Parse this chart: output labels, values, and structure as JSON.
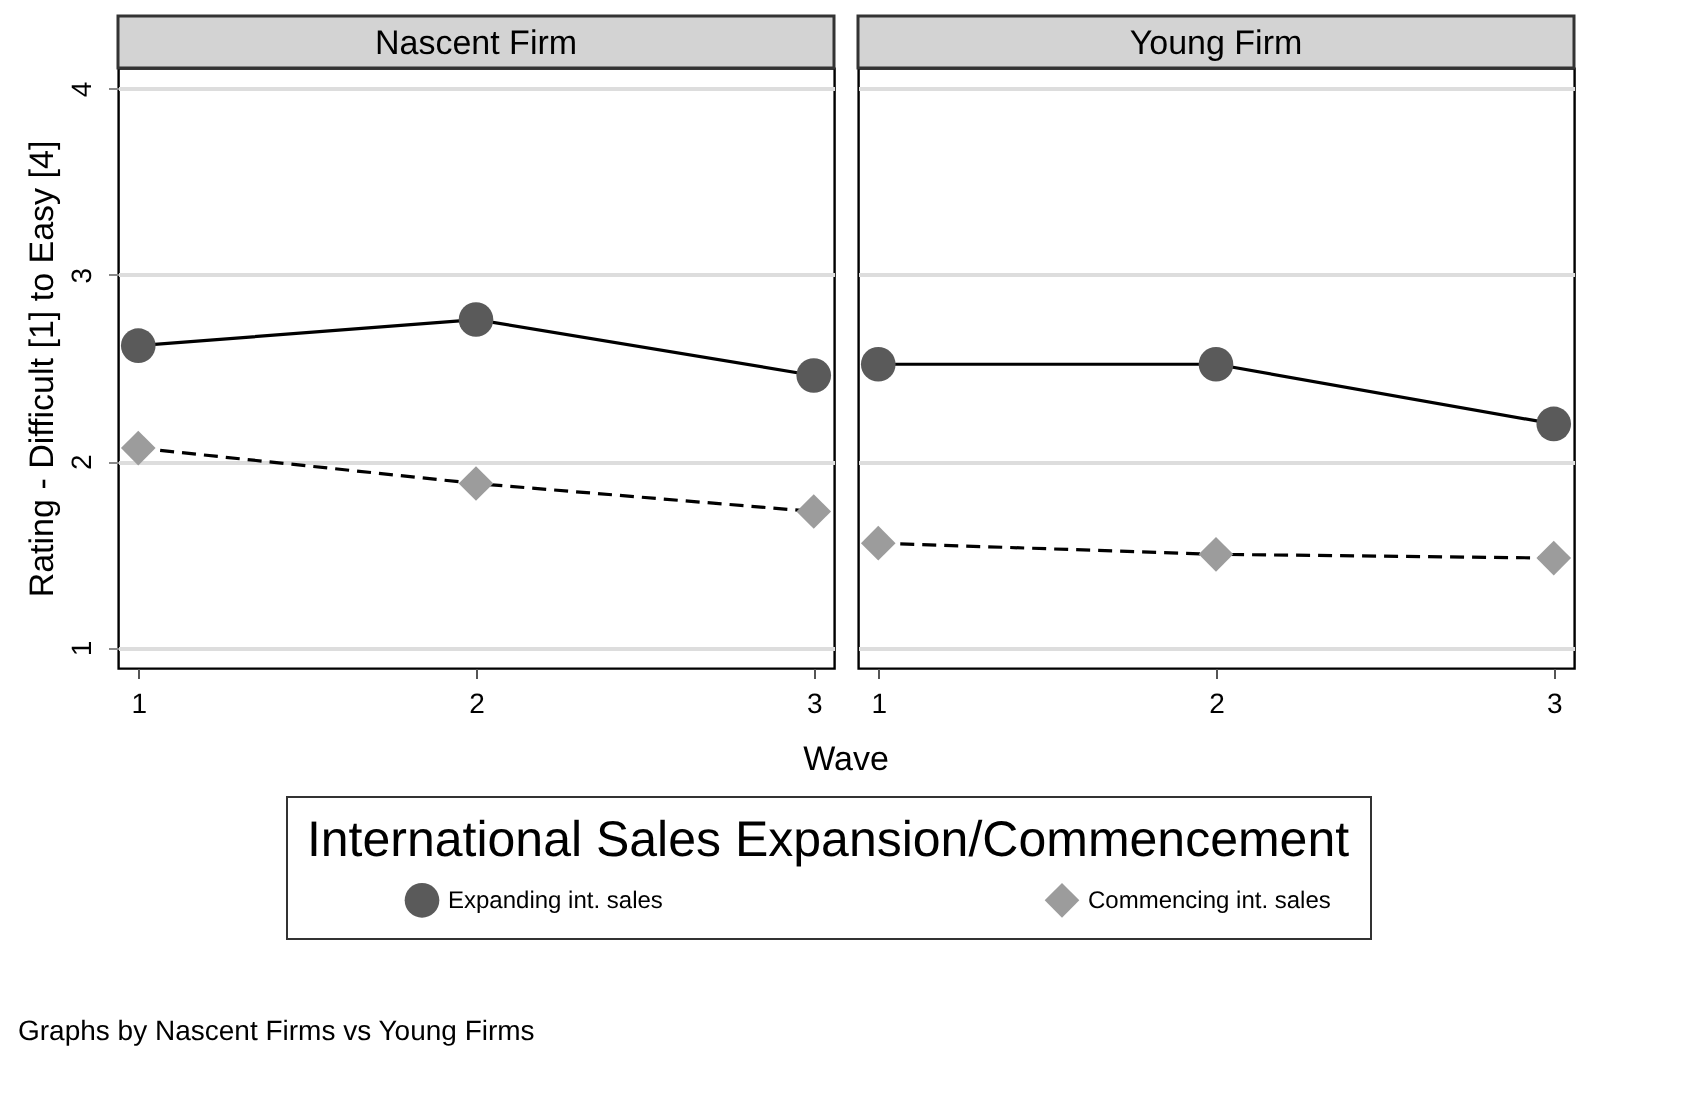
{
  "chart_data": [
    {
      "type": "line",
      "title": "Nascent Firm",
      "xlabel": "Wave",
      "ylabel": "Rating - Difficult [1] to Easy [4]",
      "legend_title": "International Sales Expansion/Commencement",
      "legend": "bottom",
      "annotations": [
        "Graphs by Nascent Firms vs Young Firms"
      ],
      "x": [
        1,
        2,
        3
      ],
      "xlim": [
        0.94,
        3.06
      ],
      "xticks": [
        1,
        2,
        3
      ],
      "ylim": [
        0.89,
        4.11
      ],
      "yticks": [
        1,
        2,
        3,
        4
      ],
      "grid": "y",
      "series": [
        {
          "name": "Expanding int. sales",
          "color": "#5a5a5a",
          "marker": "circle",
          "line_style": "solid",
          "values": [
            2.62,
            2.76,
            2.46
          ]
        },
        {
          "name": "Commencing int. sales",
          "color": "#9c9c9c",
          "marker": "diamond",
          "line_style": "dashed",
          "values": [
            2.07,
            1.88,
            1.73
          ]
        }
      ]
    },
    {
      "type": "line",
      "title": "Young Firm",
      "x": [
        1,
        2,
        3
      ],
      "xlim": [
        0.94,
        3.06
      ],
      "xticks": [
        1,
        2,
        3
      ],
      "ylim": [
        0.89,
        4.11
      ],
      "yticks": [
        1,
        2,
        3,
        4
      ],
      "grid": "y",
      "tick_labels": "x",
      "series": [
        {
          "color": "#5a5a5a",
          "marker": "circle",
          "line_style": "solid",
          "values": [
            2.52,
            2.52,
            2.2
          ]
        },
        {
          "color": "#9c9c9c",
          "marker": "diamond",
          "line_style": "dashed",
          "values": [
            1.56,
            1.5,
            1.48
          ]
        }
      ]
    }
  ]
}
